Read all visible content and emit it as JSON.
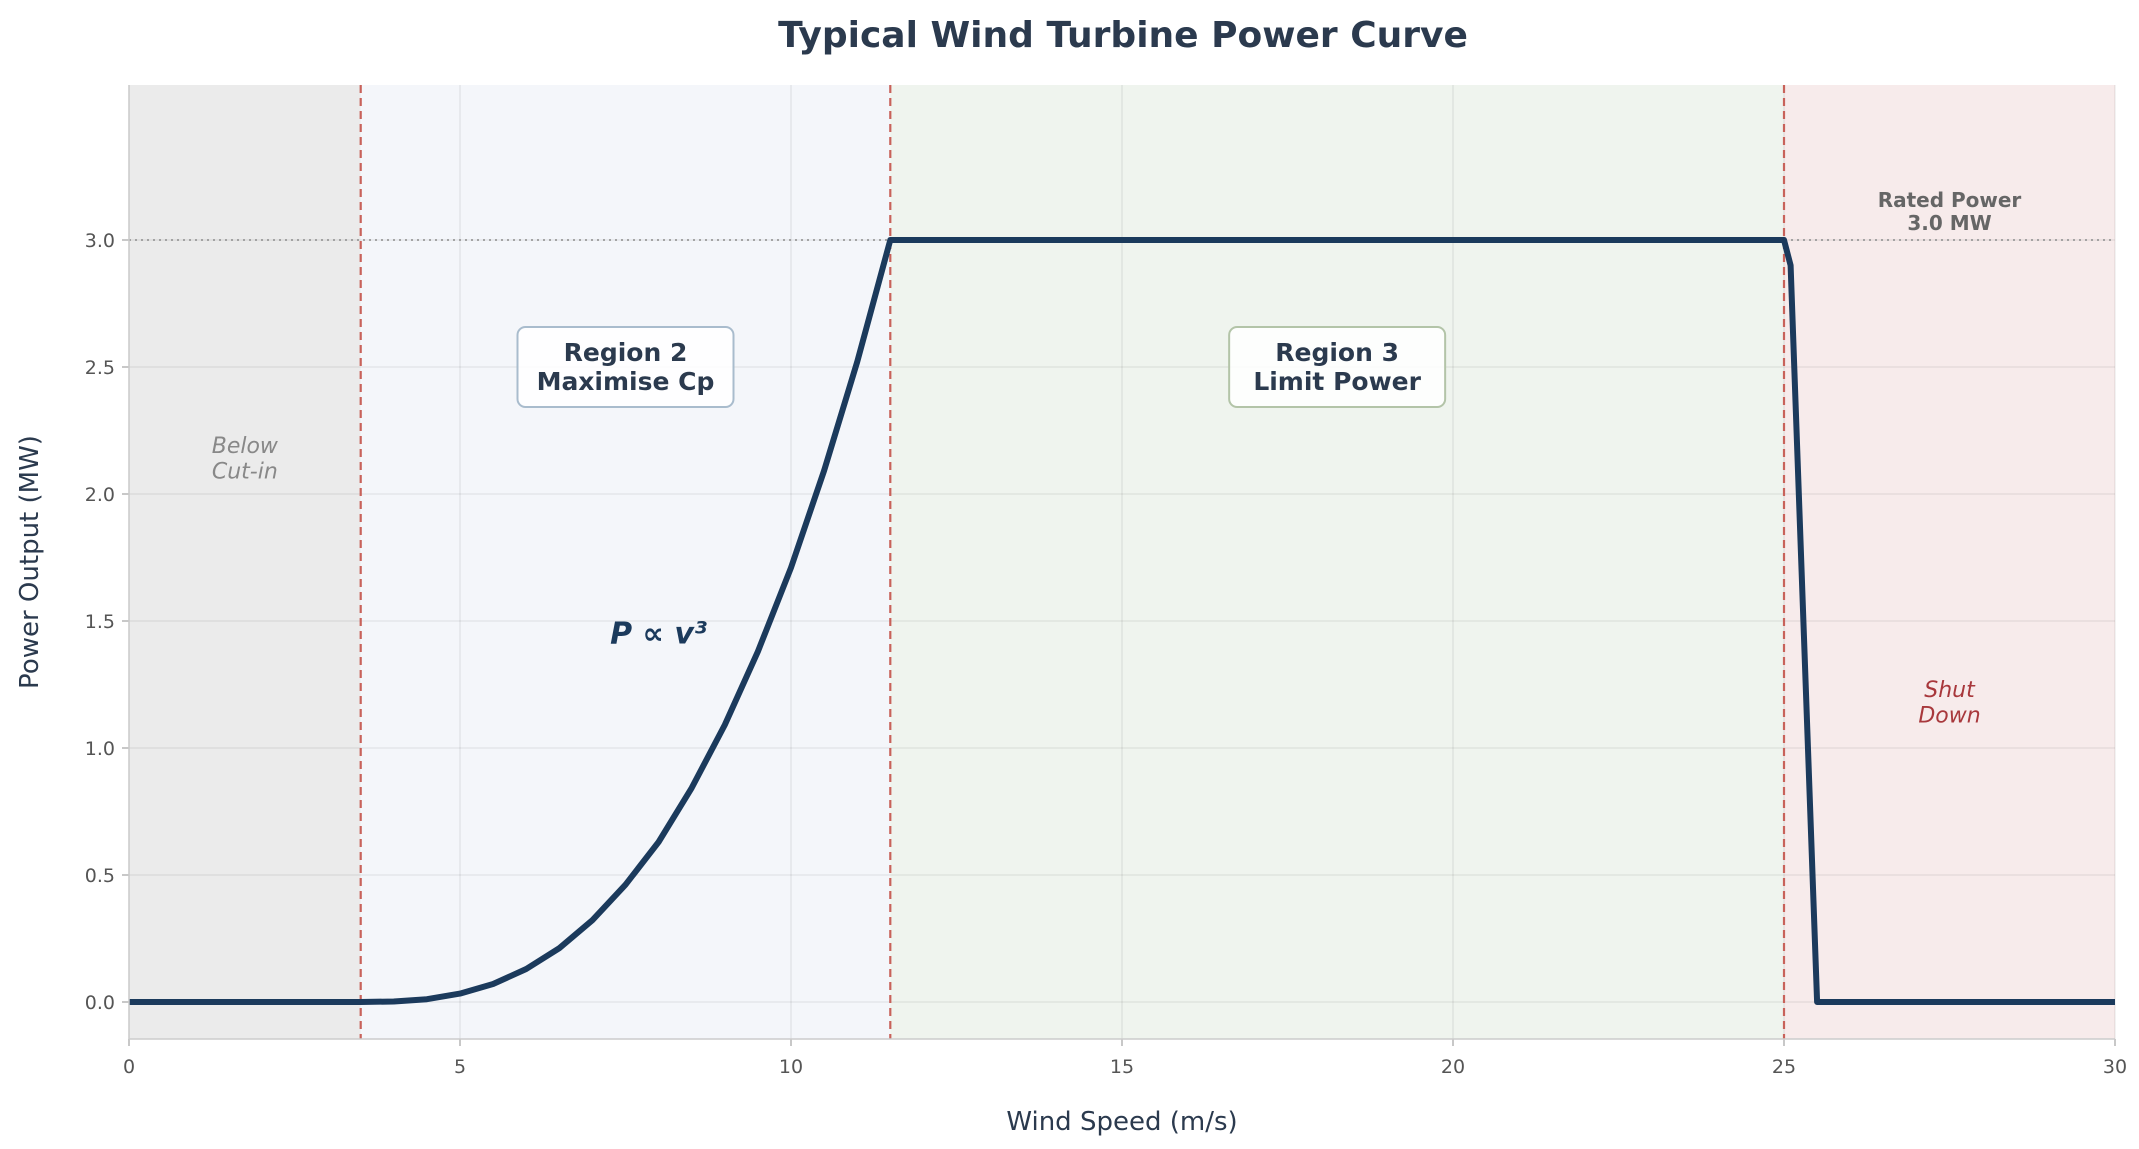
{
  "chart_data": {
    "type": "line",
    "title": "Typical Wind Turbine Power Curve",
    "xlabel": "Wind Speed (m/s)",
    "ylabel": "Power Output (MW)",
    "xlim": [
      0,
      30
    ],
    "ylim": [
      -0.15,
      3.6
    ],
    "xticks": [
      "0",
      "5",
      "10",
      "15",
      "20",
      "25",
      "30"
    ],
    "yticks": [
      "0.0",
      "0.5",
      "1.0",
      "1.5",
      "2.0",
      "2.5",
      "3.0"
    ],
    "grid": true,
    "series": [
      {
        "color": "#1b3a5c",
        "x": [
          0,
          3.5,
          4,
          4.5,
          5,
          5.5,
          6,
          6.5,
          7,
          7.5,
          8,
          8.5,
          9,
          9.5,
          10,
          10.5,
          11,
          11.5,
          25,
          25.1,
          25.5,
          30
        ],
        "y": [
          0,
          0,
          0.002,
          0.011,
          0.033,
          0.071,
          0.13,
          0.212,
          0.322,
          0.462,
          0.63,
          0.843,
          1.091,
          1.38,
          1.71,
          2.092,
          2.52,
          3.0,
          3.0,
          2.9,
          0,
          0
        ]
      }
    ],
    "regions": [
      {
        "from": 0,
        "to": 3.5,
        "color": "#ebebeb"
      },
      {
        "from": 3.5,
        "to": 11.5,
        "color": "#f4f6fa"
      },
      {
        "from": 11.5,
        "to": 25,
        "color": "#eff4ee"
      },
      {
        "from": 25,
        "to": 30,
        "color": "#f7ebeb"
      }
    ],
    "vlines": {
      "values": [
        3.5,
        11.5,
        25
      ],
      "color": "#c8625a",
      "style": "dashed"
    },
    "hline": {
      "value": 3.0,
      "color": "#999999",
      "style": "dotted"
    },
    "annotations": {
      "below_cutin": [
        "Below",
        "Cut-in"
      ],
      "region2": [
        "Region 2",
        "Maximise Cp"
      ],
      "cubic_law": "P ∝ v³",
      "region3": [
        "Region 3",
        "Limit Power"
      ],
      "rated": [
        "Rated Power",
        "3.0 MW"
      ],
      "shutdown": [
        "Shut",
        "Down"
      ]
    }
  }
}
